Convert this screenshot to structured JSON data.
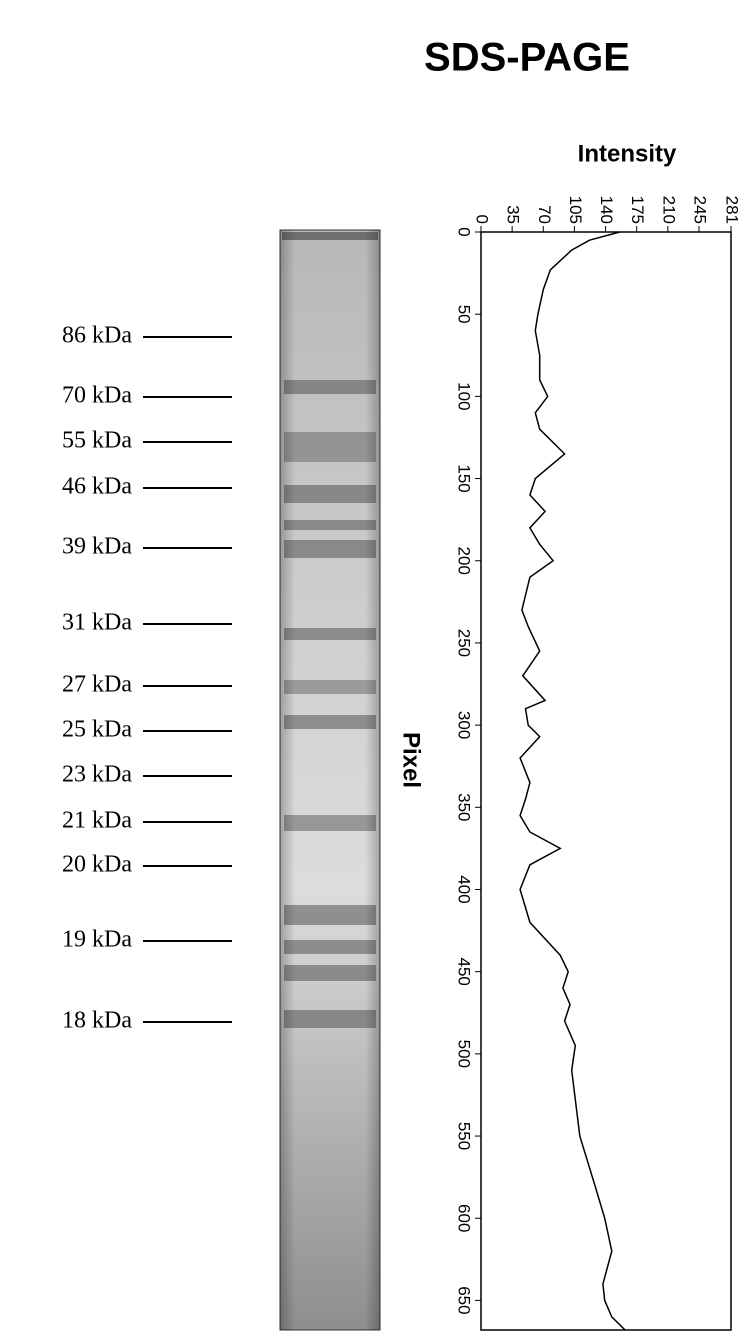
{
  "chart_data": {
    "type": "line",
    "title": "SDS-PAGE",
    "ylabel": "Intensity",
    "xlabel": "Pixel",
    "orientation": "vertical",
    "x": [
      0,
      5,
      11,
      23,
      35,
      50,
      60,
      75,
      90,
      100,
      110,
      120,
      135,
      150,
      160,
      170,
      180,
      190,
      200,
      210,
      230,
      240,
      255,
      270,
      285,
      290,
      300,
      307,
      320,
      335,
      345,
      355,
      365,
      375,
      385,
      400,
      420,
      440,
      450,
      460,
      470,
      480,
      495,
      510,
      550,
      580,
      600,
      620,
      640,
      650,
      660,
      668
    ],
    "values": [
      156,
      122,
      102,
      78,
      70,
      64,
      61,
      66,
      66,
      75,
      61,
      66,
      94,
      61,
      55,
      72,
      55,
      66,
      81,
      55,
      46,
      53,
      66,
      47,
      72,
      50,
      53,
      66,
      44,
      55,
      50,
      44,
      55,
      89,
      55,
      44,
      55,
      89,
      98,
      92,
      100,
      94,
      106,
      102,
      111,
      128,
      139,
      147,
      137,
      139,
      147,
      162
    ],
    "color": "#000000",
    "xlim": [
      0,
      668
    ],
    "xticks": [
      0,
      50,
      100,
      150,
      200,
      250,
      300,
      350,
      400,
      450,
      500,
      550,
      600,
      650
    ],
    "ylim": [
      0,
      281
    ],
    "yticks": [
      0,
      35,
      70,
      105,
      140,
      175,
      210,
      245,
      281
    ],
    "markers": [
      "86 kDa",
      "70 kDa",
      "55 kDa",
      "46 kDa",
      "39 kDa",
      "31 kDa",
      "27 kDa",
      "25 kDa",
      "23 kDa",
      "21 kDa",
      "20 kDa",
      "19 kDa",
      "18 kDa"
    ]
  }
}
